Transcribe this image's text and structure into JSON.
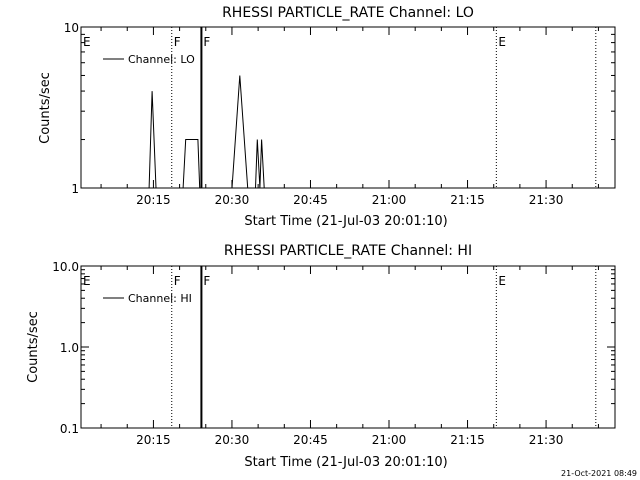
{
  "chart_data": [
    {
      "type": "line",
      "title": "RHESSI PARTICLE_RATE Channel: LO",
      "xlabel": "Start Time (21-Jul-03 20:01:10)",
      "ylabel": "Counts/sec",
      "yscale": "log",
      "ylim": [
        1,
        10
      ],
      "xlim": [
        "20:01:10",
        "21:43:10"
      ],
      "x_tick_labels": [
        "20:15",
        "20:30",
        "20:45",
        "21:00",
        "21:15",
        "21:30"
      ],
      "y_tick_labels": [
        "1",
        "10"
      ],
      "legend": {
        "position": "top-left",
        "entries": [
          "Channel: LO"
        ]
      },
      "series": [
        {
          "name": "Channel: LO",
          "points": [
            [
              "20:14:10",
              1
            ],
            [
              "20:14:45",
              4
            ],
            [
              "20:15:30",
              1
            ],
            [
              "20:20:40",
              1
            ],
            [
              "20:21:10",
              2
            ],
            [
              "20:23:30",
              2
            ],
            [
              "20:23:50",
              1
            ],
            [
              "20:30:00",
              1
            ],
            [
              "20:31:30",
              5
            ],
            [
              "20:33:00",
              1
            ],
            [
              "20:34:30",
              1
            ],
            [
              "20:34:50",
              2
            ],
            [
              "20:35:20",
              1
            ],
            [
              "20:35:40",
              2
            ],
            [
              "20:36:10",
              1
            ]
          ]
        }
      ],
      "markers": [
        {
          "label": "E",
          "time": "20:01:10",
          "style": "dotted"
        },
        {
          "label": "F",
          "time": "20:18:30",
          "style": "dotted"
        },
        {
          "label": "F",
          "time": "20:24:10",
          "style": "solid"
        },
        {
          "label": "E",
          "time": "21:20:30",
          "style": "dotted"
        },
        {
          "label": "",
          "time": "21:39:30",
          "style": "dotted"
        }
      ]
    },
    {
      "type": "line",
      "title": "RHESSI PARTICLE_RATE Channel: HI",
      "xlabel": "Start Time (21-Jul-03 20:01:10)",
      "ylabel": "Counts/sec",
      "yscale": "log",
      "ylim": [
        0.1,
        10
      ],
      "xlim": [
        "20:01:10",
        "21:43:10"
      ],
      "x_tick_labels": [
        "20:15",
        "20:30",
        "20:45",
        "21:00",
        "21:15",
        "21:30"
      ],
      "y_tick_labels": [
        "0.1",
        "1.0",
        "10.0"
      ],
      "legend": {
        "position": "top-left",
        "entries": [
          "Channel: HI"
        ]
      },
      "series": [
        {
          "name": "Channel: HI",
          "points": []
        }
      ],
      "markers": [
        {
          "label": "E",
          "time": "20:01:10",
          "style": "dotted"
        },
        {
          "label": "F",
          "time": "20:18:30",
          "style": "dotted"
        },
        {
          "label": "F",
          "time": "20:24:10",
          "style": "solid"
        },
        {
          "label": "E",
          "time": "21:20:30",
          "style": "dotted"
        },
        {
          "label": "",
          "time": "21:39:30",
          "style": "dotted"
        }
      ]
    }
  ],
  "timestamp": "21-Oct-2021 08:49"
}
